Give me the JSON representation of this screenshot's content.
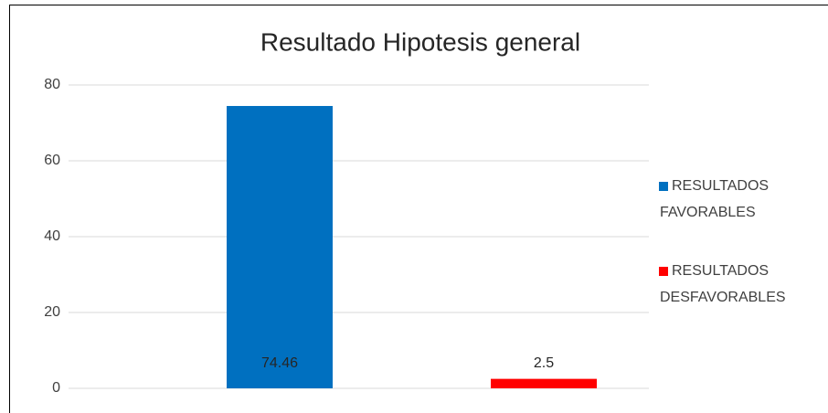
{
  "chart_data": {
    "type": "bar",
    "title": "Resultado Hipotesis general",
    "series": [
      {
        "name": "RESULTADOS FAVORABLES",
        "color": "#0070c0",
        "values": [
          74.46
        ]
      },
      {
        "name": "RESULTADOS DESFAVORABLES",
        "color": "#ff0000",
        "values": [
          2.5
        ]
      }
    ],
    "ylim": [
      0,
      80
    ],
    "yticks": [
      0,
      20,
      40,
      60,
      80
    ],
    "grid": true,
    "legend": "right",
    "data_labels": true
  }
}
